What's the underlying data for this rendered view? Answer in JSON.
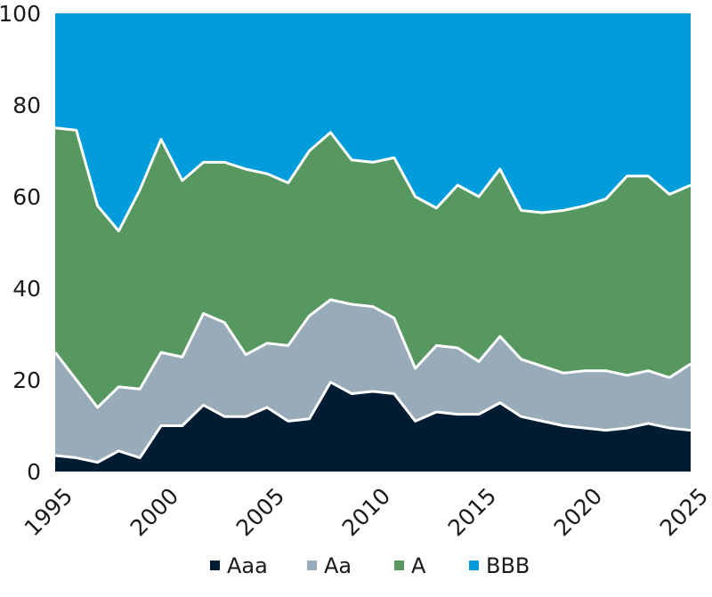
{
  "chart_data": {
    "type": "area",
    "stacked": true,
    "x": [
      1995,
      1996,
      1997,
      1998,
      1999,
      2000,
      2001,
      2002,
      2003,
      2004,
      2005,
      2006,
      2007,
      2008,
      2009,
      2010,
      2011,
      2012,
      2013,
      2014,
      2015,
      2016,
      2017,
      2018,
      2019,
      2020,
      2021,
      2022,
      2023,
      2024,
      2025
    ],
    "series": [
      {
        "name": "Aaa",
        "color": "#001c33",
        "values": [
          3.5,
          3,
          2,
          4.5,
          3,
          10,
          10,
          14.5,
          12,
          12,
          14,
          11,
          11.5,
          19.5,
          17,
          17.5,
          17,
          11,
          13,
          12.5,
          12.5,
          15,
          12,
          11,
          10,
          9.5,
          9,
          9.5,
          10.5,
          9.5,
          9
        ]
      },
      {
        "name": "Aa",
        "color": "#97abb8",
        "values": [
          22.5,
          17,
          12,
          14,
          15,
          16,
          15,
          20,
          20.5,
          13.5,
          14,
          16.5,
          22.5,
          18,
          19.5,
          18.5,
          16.5,
          11.5,
          14.5,
          14.5,
          11.5,
          14.5,
          12.5,
          12,
          11.5,
          12.5,
          13,
          11.5,
          11.5,
          11,
          14.5
        ]
      },
      {
        "name": "A",
        "color": "#579861",
        "values": [
          49,
          54.5,
          44,
          34,
          43.5,
          46.5,
          38.5,
          33,
          35,
          40.5,
          37,
          35.5,
          36,
          36.5,
          31.5,
          31.5,
          35,
          37.5,
          30,
          35.5,
          36,
          36.5,
          32.5,
          33.5,
          35.5,
          36,
          37.5,
          43.5,
          42.5,
          40,
          39
        ]
      },
      {
        "name": "BBB",
        "color": "#009cdc",
        "values": [
          25,
          25.5,
          42,
          47.5,
          38.5,
          27.5,
          36.5,
          32.5,
          32.5,
          34,
          35,
          37,
          30,
          26,
          32,
          32.5,
          31.5,
          40,
          42.5,
          37.5,
          40,
          34,
          43,
          43.5,
          43,
          42,
          40.5,
          35.5,
          35.5,
          39.5,
          37.5
        ]
      }
    ],
    "xticks": [
      "1995",
      "2000",
      "2005",
      "2010",
      "2015",
      "2020",
      "2025"
    ],
    "xtick_values": [
      1995,
      2000,
      2005,
      2010,
      2015,
      2020,
      2025
    ],
    "yticks": [
      "0",
      "20",
      "40",
      "60",
      "80",
      "100"
    ],
    "ytick_values": [
      0,
      20,
      40,
      60,
      80,
      100
    ],
    "xlim": [
      1995,
      2025
    ],
    "ylim": [
      0,
      100
    ],
    "grid": false,
    "legend_position": "bottom-center",
    "title": "",
    "xlabel": "",
    "ylabel": ""
  }
}
